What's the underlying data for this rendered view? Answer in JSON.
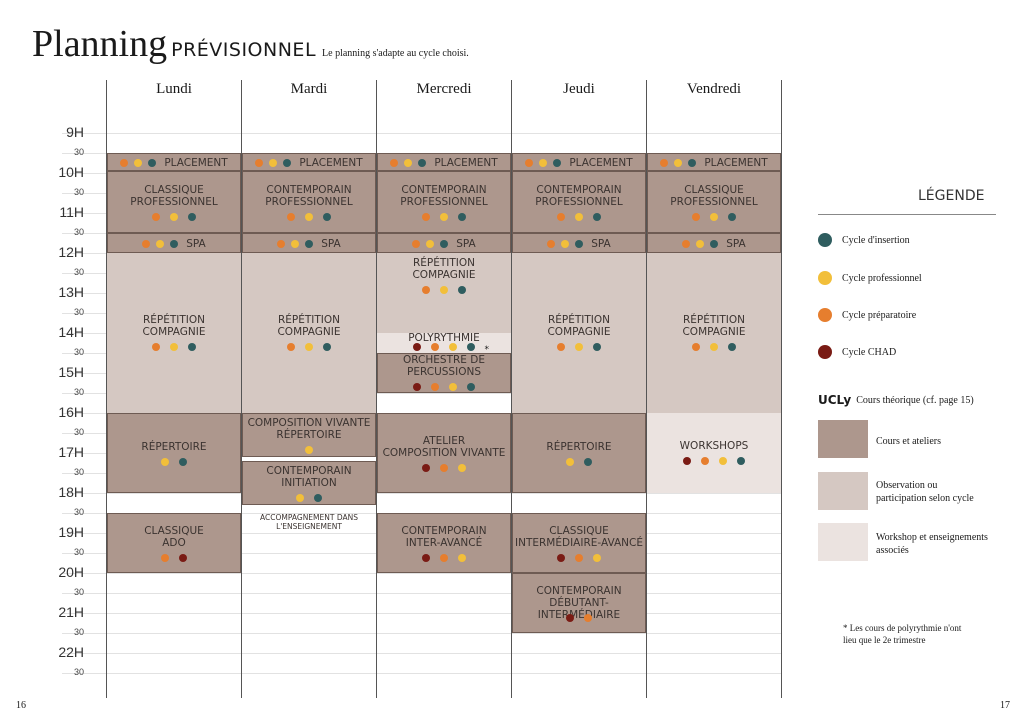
{
  "title": {
    "main": "Planning",
    "caps": "PRÉVISIONNEL",
    "subtitle": "Le planning s'adapte au cycle choisi."
  },
  "days": [
    "Lundi",
    "Mardi",
    "Mercredi",
    "Jeudi",
    "Vendredi"
  ],
  "hours": [
    "9H",
    "10H",
    "11H",
    "12H",
    "13H",
    "14H",
    "15H",
    "16H",
    "17H",
    "18H",
    "19H",
    "20H",
    "21H",
    "22H"
  ],
  "half_label": "30",
  "colors": {
    "insertion": "#2f5d5f",
    "professionnel": "#f2bf3a",
    "preparatoire": "#e67e2e",
    "chad": "#7a1b14",
    "cours": "#ad978d",
    "observation": "#d5c8c2",
    "workshop": "#ebe3e0"
  },
  "blocks": {
    "lun": {
      "placement": "PLACEMENT",
      "classique_pro": "CLASSIQUE\nPROFESSIONNEL",
      "spa": "SPA",
      "repetition": "RÉPÉTITION\nCOMPAGNIE",
      "repertoire": "RÉPERTOIRE",
      "classique_ado": "CLASSIQUE\nADO"
    },
    "mar": {
      "placement": "PLACEMENT",
      "contemporain_pro": "CONTEMPORAIN\nPROFESSIONNEL",
      "spa": "SPA",
      "repetition": "RÉPÉTITION\nCOMPAGNIE",
      "composition": "COMPOSITION VIVANTE\nRÉPERTOIRE",
      "contemporain_init": "CONTEMPORAIN\nINITIATION",
      "accompagnement": "ACCOMPAGNEMENT DANS\nL'ENSEIGNEMENT"
    },
    "mer": {
      "placement": "PLACEMENT",
      "contemporain_pro": "CONTEMPORAIN\nPROFESSIONNEL",
      "spa": "SPA",
      "repetition": "RÉPÉTITION\nCOMPAGNIE",
      "polyrythmie": "POLYRYTHMIE",
      "asterisk": "*",
      "orchestre": "ORCHESTRE DE\nPERCUSSIONS",
      "atelier": "ATELIER\nCOMPOSITION VIVANTE",
      "contemporain_inter": "CONTEMPORAIN\nINTER-AVANCÉ"
    },
    "jeu": {
      "placement": "PLACEMENT",
      "contemporain_pro": "CONTEMPORAIN\nPROFESSIONNEL",
      "spa": "SPA",
      "repetition": "RÉPÉTITION\nCOMPAGNIE",
      "repertoire": "RÉPERTOIRE",
      "classique_inter": "CLASSIQUE\nINTERMÉDIAIRE-AVANCÉ",
      "contemporain_deb": "CONTEMPORAIN\nDÉBUTANT-INTERMÉDIAIRE"
    },
    "ven": {
      "placement": "PLACEMENT",
      "classique_pro": "CLASSIQUE\nPROFESSIONNEL",
      "spa": "SPA",
      "repetition": "RÉPÉTITION\nCOMPAGNIE",
      "workshops": "WORKSHOPS"
    }
  },
  "legend": {
    "title": "LÉGENDE",
    "insertion": "Cycle d'insertion",
    "professionnel": "Cycle professionnel",
    "preparatoire": "Cycle préparatoire",
    "chad": "Cycle CHAD",
    "ucly_logo": "UCLy",
    "ucly_text": "Cours théorique (cf. page 15)",
    "cours": "Cours et ateliers",
    "observation": "Observation ou\nparticipation selon cycle",
    "workshop": "Workshop et enseignements\nassociés",
    "note": "* Les cours de polyrythmie n'ont\nlieu que le 2e trimestre"
  },
  "pages": {
    "left": "16",
    "right": "17"
  }
}
